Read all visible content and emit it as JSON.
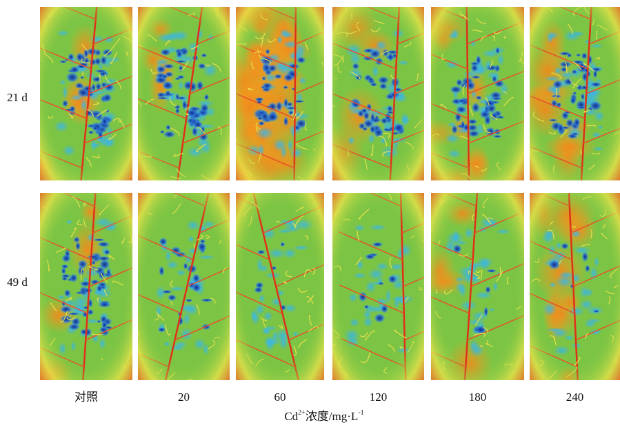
{
  "figure": {
    "rows": [
      "21 d",
      "49 d"
    ],
    "columns": [
      "对照",
      "20",
      "60",
      "120",
      "180",
      "240"
    ],
    "axis_title": {
      "base": "Cd",
      "sup1": "2+",
      "mid": "浓度/mg·L",
      "sup2": "-1"
    }
  }
}
